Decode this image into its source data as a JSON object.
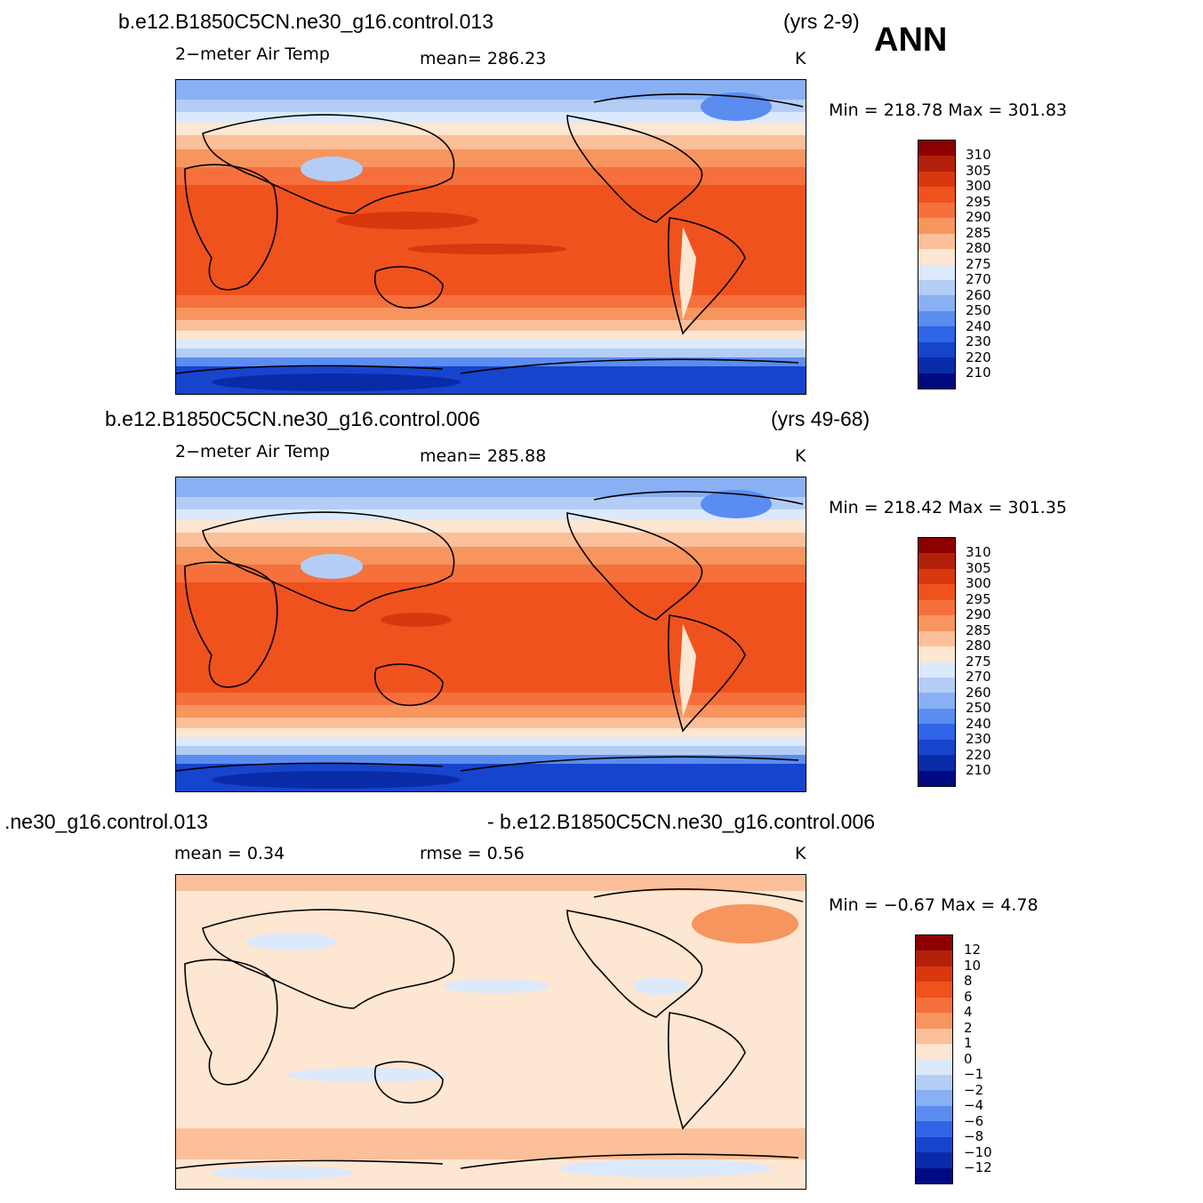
{
  "season": "ANN",
  "panels": [
    {
      "case": "b.e12.B1850C5CN.ne30_g16.control.013",
      "years": "(yrs 2-9)",
      "variable": "2−meter Air Temp",
      "stat": "mean=  286.23",
      "units": "K",
      "minmax": "Min  =  218.78  Max  =  301.83",
      "colorbar_labels": [
        "310",
        "305",
        "300",
        "295",
        "290",
        "285",
        "280",
        "275",
        "270",
        "260",
        "250",
        "240",
        "230",
        "220",
        "210"
      ]
    },
    {
      "case": "b.e12.B1850C5CN.ne30_g16.control.006",
      "years": "(yrs 49-68)",
      "variable": "2−meter Air Temp",
      "stat": "mean=  285.88",
      "units": "K",
      "minmax": "Min  =  218.42  Max  =  301.35",
      "colorbar_labels": [
        "310",
        "305",
        "300",
        "295",
        "290",
        "285",
        "280",
        "275",
        "270",
        "260",
        "250",
        "240",
        "230",
        "220",
        "210"
      ]
    },
    {
      "case_left": ".ne30_g16.control.013",
      "case_right": "- b.e12.B1850C5CN.ne30_g16.control.006",
      "mean": "mean  =     0.34",
      "rmse": "rmse  =     0.56",
      "units": "K",
      "minmax": "Min  =    −0.67  Max  =      4.78",
      "colorbar_labels": [
        "12",
        "10",
        "8",
        "6",
        "4",
        "2",
        "1",
        "0",
        "−1",
        "−2",
        "−4",
        "−6",
        "−8",
        "−10",
        "−12"
      ]
    }
  ],
  "colors": {
    "temp_palette": [
      "#8c0000",
      "#b3200a",
      "#d9380f",
      "#f0521e",
      "#f5703c",
      "#f7955f",
      "#fbbf9a",
      "#fde6d2",
      "#dbe9fb",
      "#b4cdf5",
      "#89b0f4",
      "#5b8cf0",
      "#2f65e6",
      "#1744cc",
      "#0a2ba8",
      "#000a80"
    ],
    "diff_palette": [
      "#8c0000",
      "#b3200a",
      "#d9380f",
      "#f0521e",
      "#f5703c",
      "#f7955f",
      "#fbbf9a",
      "#fde6d2",
      "#dbe9fb",
      "#b4cdf5",
      "#89b0f4",
      "#5b8cf0",
      "#2f65e6",
      "#1744cc",
      "#0a2ba8",
      "#000a80"
    ]
  }
}
